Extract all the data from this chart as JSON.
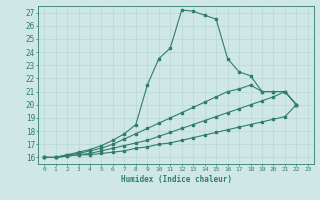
{
  "xlabel": "Humidex (Indice chaleur)",
  "xlim": [
    -0.5,
    23.5
  ],
  "ylim": [
    15.5,
    27.5
  ],
  "xticks": [
    0,
    1,
    2,
    3,
    4,
    5,
    6,
    7,
    8,
    9,
    10,
    11,
    12,
    13,
    14,
    15,
    16,
    17,
    18,
    19,
    20,
    21,
    22,
    23
  ],
  "yticks": [
    16,
    17,
    18,
    19,
    20,
    21,
    22,
    23,
    24,
    25,
    26,
    27
  ],
  "bg_color": "#cfe8e5",
  "grid_color": "#b8d8d5",
  "line_color": "#2e7d6e",
  "line_series": [
    {
      "x": [
        0,
        1,
        2,
        3,
        4,
        5,
        6,
        7,
        8,
        9,
        10,
        11,
        12,
        13,
        14,
        15,
        16,
        17,
        18,
        19,
        20,
        21,
        22
      ],
      "y": [
        16,
        16,
        16.2,
        16.4,
        16.6,
        16.9,
        17.3,
        17.8,
        18.5,
        21.5,
        23.5,
        24.3,
        27.2,
        27.1,
        26.8,
        26.5,
        23.5,
        22.5,
        22.2,
        21.0,
        21.0,
        21.0,
        20.0
      ]
    },
    {
      "x": [
        0,
        1,
        2,
        3,
        4,
        5,
        6,
        7,
        8,
        9,
        10,
        11,
        12,
        13,
        14,
        15,
        16,
        17,
        18,
        19,
        20,
        21,
        22
      ],
      "y": [
        16,
        16,
        16.2,
        16.3,
        16.5,
        16.7,
        17.0,
        17.4,
        17.8,
        18.2,
        18.6,
        19.0,
        19.4,
        19.8,
        20.2,
        20.6,
        21.0,
        21.2,
        21.5,
        21.0,
        21.0,
        21.0,
        20.0
      ]
    },
    {
      "x": [
        0,
        1,
        2,
        3,
        4,
        5,
        6,
        7,
        8,
        9,
        10,
        11,
        12,
        13,
        14,
        15,
        16,
        17,
        18,
        19,
        20,
        21,
        22
      ],
      "y": [
        16,
        16,
        16.1,
        16.2,
        16.3,
        16.5,
        16.7,
        16.9,
        17.1,
        17.3,
        17.6,
        17.9,
        18.2,
        18.5,
        18.8,
        19.1,
        19.4,
        19.7,
        20.0,
        20.3,
        20.6,
        21.0,
        20.0
      ]
    },
    {
      "x": [
        0,
        1,
        2,
        3,
        4,
        5,
        6,
        7,
        8,
        9,
        10,
        11,
        12,
        13,
        14,
        15,
        16,
        17,
        18,
        19,
        20,
        21,
        22
      ],
      "y": [
        16,
        16,
        16.1,
        16.2,
        16.2,
        16.3,
        16.4,
        16.5,
        16.7,
        16.8,
        17.0,
        17.1,
        17.3,
        17.5,
        17.7,
        17.9,
        18.1,
        18.3,
        18.5,
        18.7,
        18.9,
        19.1,
        20.0
      ]
    }
  ]
}
